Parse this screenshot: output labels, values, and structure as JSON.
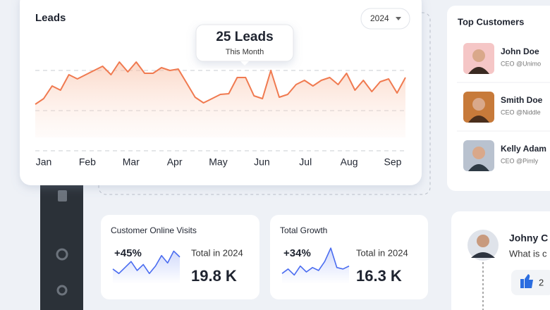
{
  "chart_data": [
    {
      "type": "line",
      "title": "Leads",
      "selector": "2024",
      "tooltip": {
        "title": "25 Leads",
        "subtitle": "This Month"
      },
      "x_labels": [
        "Jan",
        "Feb",
        "Mar",
        "Apr",
        "May",
        "Jun",
        "Jul",
        "Aug",
        "Sep"
      ],
      "values": [
        66,
        74,
        92,
        86,
        108,
        102,
        108,
        114,
        120,
        108,
        126,
        112,
        126,
        110,
        110,
        118,
        114,
        116,
        96,
        76,
        68,
        74,
        80,
        81,
        104,
        104,
        78,
        74,
        114,
        76,
        80,
        94,
        100,
        92,
        100,
        104,
        94,
        110,
        86,
        100,
        84,
        98,
        102,
        82,
        104
      ],
      "color": "#f07a50",
      "ylim": [
        0,
        134
      ],
      "yticks": [
        0,
        57,
        114
      ],
      "grid": true
    },
    {
      "type": "sparkline",
      "title": "Customer Online Visits",
      "change": "+45%",
      "caption": "Total in 2024",
      "total": "19.8 K",
      "values": [
        20,
        14,
        22,
        30,
        18,
        26,
        14,
        24,
        38,
        28,
        44,
        36
      ],
      "color": "#4a6cf0",
      "ylim": [
        0,
        50
      ]
    },
    {
      "type": "sparkline",
      "title": "Total Growth",
      "change": "+34%",
      "caption": "Total in 2024",
      "total": "16.3 K",
      "values": [
        14,
        20,
        12,
        24,
        16,
        22,
        18,
        30,
        48,
        22,
        20,
        24
      ],
      "color": "#4a6cf0",
      "ylim": [
        0,
        50
      ]
    }
  ],
  "customers": {
    "title": "Top Customers",
    "items": [
      {
        "name": "John Doe",
        "role": "CEO @Unimo"
      },
      {
        "name": "Smith Doe",
        "role": "CEO @Niddle"
      },
      {
        "name": "Kelly Adam",
        "role": "CEO @Pimly"
      }
    ]
  },
  "comment": {
    "name": "Johny C",
    "text": "What is c",
    "likes": "2"
  }
}
